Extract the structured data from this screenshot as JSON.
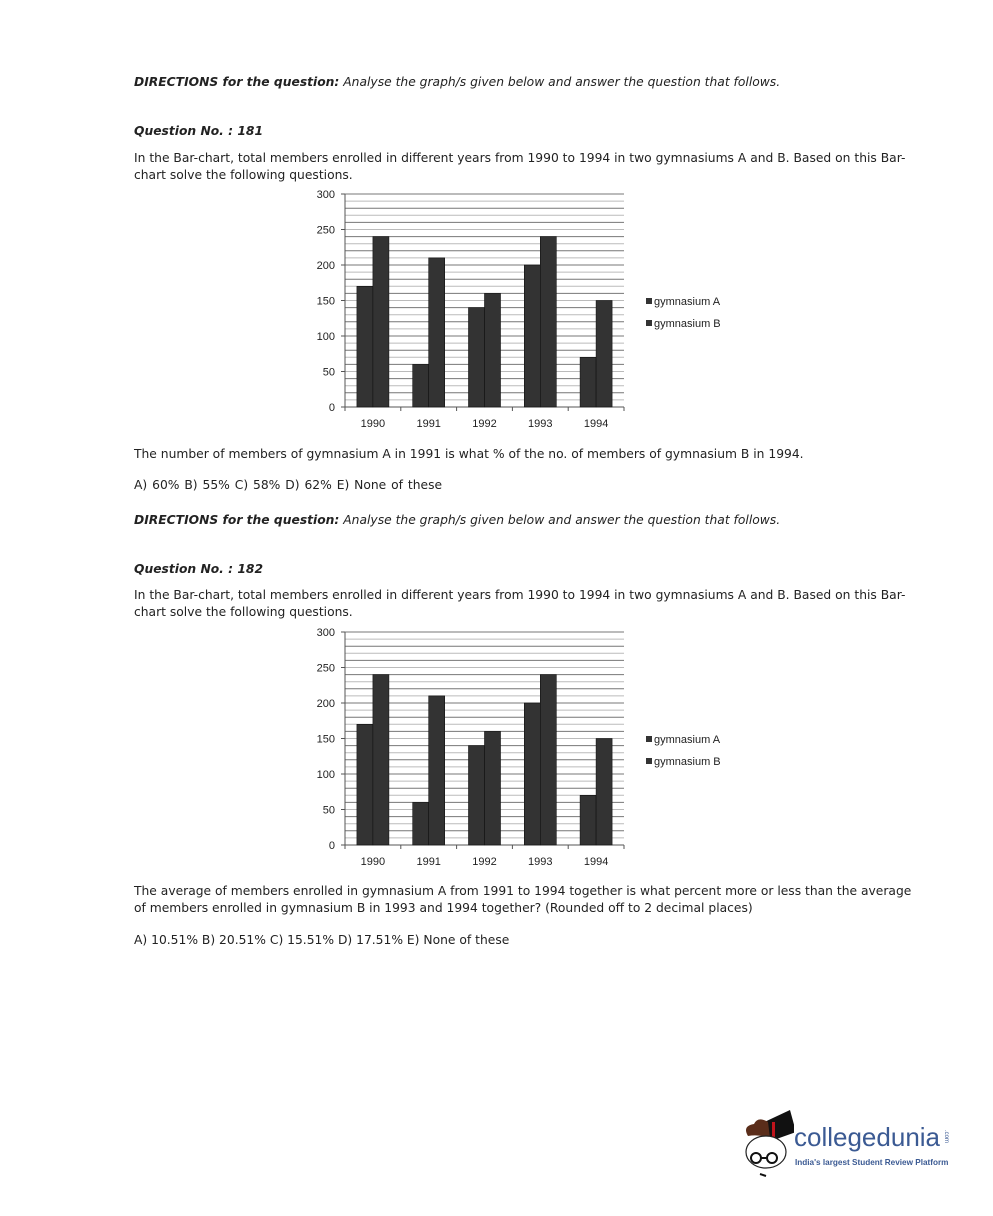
{
  "questions": [
    {
      "directions_label": "DIRECTIONS for the question:",
      "directions_text": " Analyse the graph/s given below and answer the question that follows.",
      "number": "Question No. : 181",
      "intro_line1": "In the Bar-chart, total members enrolled in different years from 1990 to 1994 in two gymnasiums A and B. Based on this Bar-",
      "intro_line2": "chart solve the following questions.",
      "question_line1": "The number of members of gymnasium A in 1991 is what % of the no. of members of gymnasium B in 1994.",
      "question_line2": "",
      "options": "A) 60%    B) 55%    C) 58%    D) 62%    E) None of these"
    },
    {
      "directions_label": "DIRECTIONS for the question:",
      "directions_text": " Analyse the graph/s given below and answer the question that follows.",
      "number": "Question No. : 182",
      "intro_line1": "In the Bar-chart, total members enrolled in different years from 1990 to 1994 in two gymnasiums A and B. Based on this Bar-",
      "intro_line2": "chart solve the following questions.",
      "question_line1": "The average of members enrolled in gymnasium A from 1991 to 1994 together is what percent more or less than the average",
      "question_line2": "of members enrolled in gymnasium B in 1993 and 1994 together? (Rounded off to 2 decimal places)",
      "options": "A) 10.51%    B) 20.51%    C) 15.51%    D) 17.51%    E) None of these"
    }
  ],
  "chart_data": [
    {
      "type": "bar",
      "categories": [
        "1990",
        "1991",
        "1992",
        "1993",
        "1994"
      ],
      "series": [
        {
          "name": "gymnasium A",
          "values": [
            170,
            60,
            140,
            200,
            70
          ]
        },
        {
          "name": "gymnasium B",
          "values": [
            240,
            210,
            160,
            240,
            150
          ]
        }
      ],
      "yticks": [
        "0",
        "50",
        "100",
        "150",
        "200",
        "250",
        "300"
      ],
      "ylim": [
        0,
        300
      ],
      "grid": true,
      "legend": "right",
      "bar_color": "#333333"
    },
    {
      "type": "bar",
      "categories": [
        "1990",
        "1991",
        "1992",
        "1993",
        "1994"
      ],
      "series": [
        {
          "name": "gymnasium A",
          "values": [
            170,
            60,
            140,
            200,
            70
          ]
        },
        {
          "name": "gymnasium B",
          "values": [
            240,
            210,
            160,
            240,
            150
          ]
        }
      ],
      "yticks": [
        "0",
        "50",
        "100",
        "150",
        "200",
        "250",
        "300"
      ],
      "ylim": [
        0,
        300
      ],
      "grid": true,
      "legend": "right",
      "bar_color": "#333333"
    }
  ],
  "logo": {
    "name": "collegedunia",
    "suffix": ".com",
    "tagline": "India's largest Student Review Platform"
  }
}
